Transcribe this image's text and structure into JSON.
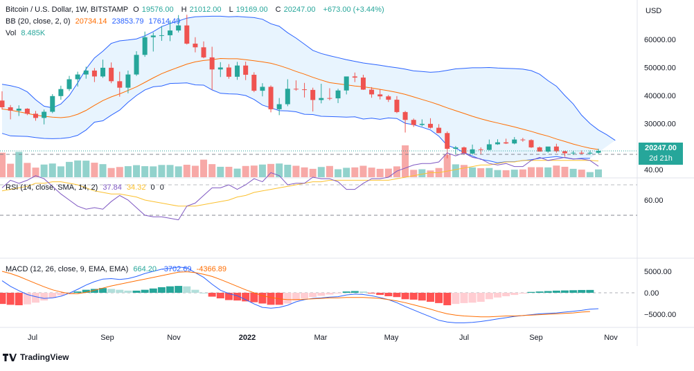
{
  "header": {
    "symbol": "Bitcoin / U.S. Dollar, 1W, BITSTAMP",
    "open_label": "O",
    "open": "19576.00",
    "high_label": "H",
    "high": "21012.00",
    "low_label": "L",
    "low": "19169.00",
    "close_label": "C",
    "close": "20247.00",
    "change": "+673.00 (+3.44%)",
    "bb_label": "BB (20, close, 2, 0)",
    "bb_basis": "20734.14",
    "bb_upper": "23853.79",
    "bb_lower": "17614.49",
    "vol_label": "Vol",
    "vol_value": "8.485K"
  },
  "rsi_header": {
    "label": "RSI (14, close, SMA, 14, 2)",
    "rsi": "37.84",
    "sma": "34.32",
    "v1": "0",
    "v2": "0"
  },
  "macd_header": {
    "label": "MACD (12, 26, close, 9, EMA, EMA)",
    "hist": "664.20",
    "macd": "-3702.69",
    "signal": "-4366.89"
  },
  "price_scale": {
    "currency": "USD",
    "ticks": [
      "60000.00",
      "50000.00",
      "40000.00",
      "30000.00"
    ],
    "last_price": "20247.00",
    "countdown": "2d 21h"
  },
  "rsi_scale": {
    "ticks": [
      "60.00",
      "40.00"
    ]
  },
  "macd_scale": {
    "ticks": [
      "5000.00",
      "0.00",
      "−5000.00"
    ]
  },
  "time_axis": [
    "Jul",
    "Sep",
    "Nov",
    "2022",
    "Mar",
    "May",
    "Jul",
    "Sep",
    "Nov"
  ],
  "brand": "TradingView",
  "colors": {
    "up": "#26a69a",
    "down": "#ef5350",
    "bb_line": "#2962ff",
    "basis": "#ff6d00",
    "rsi": "#7e57c2",
    "rsi_sma": "#fbc02d",
    "macd": "#2962ff",
    "signal": "#ff6d00"
  },
  "chart_data": {
    "type": "candlestick",
    "interval": "1W",
    "ylim": [
      18000,
      70000
    ],
    "candles": [
      {
        "o": 38200,
        "h": 41500,
        "l": 35000,
        "c": 35800
      },
      {
        "o": 35800,
        "h": 36600,
        "l": 31500,
        "c": 34600
      },
      {
        "o": 34600,
        "h": 36500,
        "l": 32700,
        "c": 35300
      },
      {
        "o": 35300,
        "h": 35500,
        "l": 33000,
        "c": 33500
      },
      {
        "o": 33500,
        "h": 34500,
        "l": 31000,
        "c": 32000
      },
      {
        "o": 32000,
        "h": 35000,
        "l": 29700,
        "c": 34200
      },
      {
        "o": 34200,
        "h": 40500,
        "l": 33700,
        "c": 39800
      },
      {
        "o": 39800,
        "h": 43500,
        "l": 38500,
        "c": 42300
      },
      {
        "o": 42300,
        "h": 47000,
        "l": 41600,
        "c": 45800
      },
      {
        "o": 45800,
        "h": 48500,
        "l": 43200,
        "c": 47500
      },
      {
        "o": 47500,
        "h": 50300,
        "l": 46000,
        "c": 48900
      },
      {
        "o": 48900,
        "h": 49800,
        "l": 44800,
        "c": 46800
      },
      {
        "o": 46800,
        "h": 52800,
        "l": 46300,
        "c": 49900
      },
      {
        "o": 49900,
        "h": 51800,
        "l": 44400,
        "c": 45100
      },
      {
        "o": 45100,
        "h": 48500,
        "l": 39600,
        "c": 42800
      },
      {
        "o": 42800,
        "h": 48900,
        "l": 40800,
        "c": 47500
      },
      {
        "o": 47500,
        "h": 55800,
        "l": 47000,
        "c": 54500
      },
      {
        "o": 54500,
        "h": 62800,
        "l": 53800,
        "c": 60800
      },
      {
        "o": 60800,
        "h": 62500,
        "l": 55700,
        "c": 61400
      },
      {
        "o": 61400,
        "h": 64800,
        "l": 59500,
        "c": 61500
      },
      {
        "o": 61500,
        "h": 66800,
        "l": 59400,
        "c": 63200
      },
      {
        "o": 63200,
        "h": 68700,
        "l": 62500,
        "c": 65000
      },
      {
        "o": 65000,
        "h": 68800,
        "l": 58200,
        "c": 58500
      },
      {
        "o": 58500,
        "h": 60800,
        "l": 55400,
        "c": 57200
      },
      {
        "o": 57200,
        "h": 59300,
        "l": 53300,
        "c": 53600
      },
      {
        "o": 53600,
        "h": 57400,
        "l": 42000,
        "c": 49300
      },
      {
        "o": 49300,
        "h": 51900,
        "l": 46600,
        "c": 50000
      },
      {
        "o": 50000,
        "h": 51200,
        "l": 46000,
        "c": 46700
      },
      {
        "o": 46700,
        "h": 52000,
        "l": 45600,
        "c": 50700
      },
      {
        "o": 50700,
        "h": 52100,
        "l": 45500,
        "c": 47400
      },
      {
        "o": 47400,
        "h": 48300,
        "l": 41200,
        "c": 41700
      },
      {
        "o": 41700,
        "h": 44400,
        "l": 39700,
        "c": 43100
      },
      {
        "o": 43100,
        "h": 43600,
        "l": 34000,
        "c": 35100
      },
      {
        "o": 35100,
        "h": 39100,
        "l": 33000,
        "c": 36900
      },
      {
        "o": 36900,
        "h": 45800,
        "l": 36200,
        "c": 42400
      },
      {
        "o": 42400,
        "h": 45400,
        "l": 41700,
        "c": 42200
      },
      {
        "o": 42200,
        "h": 44500,
        "l": 39300,
        "c": 42000
      },
      {
        "o": 42000,
        "h": 42800,
        "l": 34300,
        "c": 38400
      },
      {
        "o": 38400,
        "h": 44200,
        "l": 37200,
        "c": 39100
      },
      {
        "o": 39100,
        "h": 42600,
        "l": 38300,
        "c": 39000
      },
      {
        "o": 39000,
        "h": 42400,
        "l": 37300,
        "c": 41800
      },
      {
        "o": 41800,
        "h": 46600,
        "l": 40400,
        "c": 46800
      },
      {
        "o": 46800,
        "h": 48200,
        "l": 44800,
        "c": 46400
      },
      {
        "o": 46400,
        "h": 47400,
        "l": 42000,
        "c": 42100
      },
      {
        "o": 42100,
        "h": 43000,
        "l": 39200,
        "c": 40400
      },
      {
        "o": 40400,
        "h": 42200,
        "l": 38600,
        "c": 39700
      },
      {
        "o": 39700,
        "h": 40200,
        "l": 37700,
        "c": 38500
      },
      {
        "o": 38500,
        "h": 39800,
        "l": 33700,
        "c": 34100
      },
      {
        "o": 34100,
        "h": 34500,
        "l": 26800,
        "c": 31300
      },
      {
        "o": 31300,
        "h": 31800,
        "l": 28800,
        "c": 29500
      },
      {
        "o": 29500,
        "h": 31500,
        "l": 29000,
        "c": 29900
      },
      {
        "o": 29900,
        "h": 31900,
        "l": 28200,
        "c": 28500
      },
      {
        "o": 28500,
        "h": 29800,
        "l": 26600,
        "c": 26600
      },
      {
        "o": 26600,
        "h": 27200,
        "l": 17600,
        "c": 21000
      },
      {
        "o": 21000,
        "h": 22000,
        "l": 19200,
        "c": 21500
      },
      {
        "o": 21500,
        "h": 21800,
        "l": 18800,
        "c": 19300
      },
      {
        "o": 19300,
        "h": 22500,
        "l": 18900,
        "c": 20800
      },
      {
        "o": 20800,
        "h": 21500,
        "l": 19100,
        "c": 20600
      },
      {
        "o": 20600,
        "h": 24300,
        "l": 20400,
        "c": 22600
      },
      {
        "o": 22600,
        "h": 24400,
        "l": 22400,
        "c": 23300
      },
      {
        "o": 23300,
        "h": 24600,
        "l": 22700,
        "c": 22900
      },
      {
        "o": 22900,
        "h": 25200,
        "l": 22600,
        "c": 24300
      },
      {
        "o": 24300,
        "h": 24900,
        "l": 23500,
        "c": 24100
      },
      {
        "o": 24100,
        "h": 24400,
        "l": 21300,
        "c": 21500
      },
      {
        "o": 21500,
        "h": 21800,
        "l": 20000,
        "c": 20000
      },
      {
        "o": 20000,
        "h": 21500,
        "l": 19600,
        "c": 21800
      },
      {
        "o": 21800,
        "h": 22800,
        "l": 19600,
        "c": 20100
      },
      {
        "o": 20100,
        "h": 20300,
        "l": 18200,
        "c": 19400
      },
      {
        "o": 19400,
        "h": 20200,
        "l": 18800,
        "c": 19600
      },
      {
        "o": 19600,
        "h": 20400,
        "l": 18900,
        "c": 19300
      },
      {
        "o": 19300,
        "h": 20400,
        "l": 18800,
        "c": 19600
      },
      {
        "o": 19576,
        "h": 21012,
        "l": 19169,
        "c": 20247
      }
    ],
    "bb_upper": [
      44000,
      43500,
      42800,
      41300,
      38500,
      36200,
      35600,
      37000,
      40000,
      44500,
      49500,
      53400,
      55800,
      58600,
      59500,
      59800,
      60200,
      61300,
      62800,
      64600,
      65700,
      66600,
      67600,
      68100,
      68200,
      68300,
      68300,
      68100,
      68200,
      68000,
      67800,
      67200,
      65600,
      64700,
      62400,
      60500,
      58300,
      56100,
      55000,
      54200,
      53500,
      52800,
      52200,
      51600,
      51200,
      50800,
      50300,
      49900,
      49400,
      48800,
      48600,
      48300,
      48500,
      49000,
      49500,
      49700,
      49900,
      49900,
      50000,
      49800,
      49700,
      49600,
      49400,
      48900,
      47600,
      45300,
      43300,
      40000,
      37000,
      33000,
      30000,
      27700,
      26000,
      24000
    ],
    "bb_lower": [
      26500,
      25600,
      25500,
      25400,
      25000,
      24700,
      24600,
      24700,
      25000,
      25800,
      27700,
      30500,
      31000,
      33000,
      34800,
      37600,
      40000,
      42000,
      43100,
      43400,
      44300,
      44400,
      44500,
      43800,
      43700,
      42000,
      40800,
      40600,
      40500,
      40000,
      38600,
      36600,
      35600,
      34600,
      34500,
      34200,
      33300,
      33200,
      32600,
      32500,
      32400,
      32300,
      32400,
      31600,
      31900,
      31500,
      32000,
      31800,
      30100,
      29600,
      28700,
      27700,
      25500,
      22200,
      21200,
      19600,
      18400,
      17200,
      16700,
      16000,
      16400,
      16400,
      16800,
      17100,
      17600,
      17900,
      18200,
      17800,
      17300,
      17600,
      17600
    ],
    "bb_basis": [
      35200,
      34800,
      34200,
      33600,
      33000,
      32600,
      32300,
      32100,
      32400,
      33300,
      34700,
      36500,
      38200,
      39500,
      40600,
      41800,
      43100,
      44700,
      46300,
      47800,
      49000,
      50100,
      51200,
      52000,
      52500,
      52800,
      53200,
      53100,
      53100,
      52800,
      52400,
      52000,
      51500,
      50700,
      49700,
      48600,
      47600,
      46500,
      45500,
      44600,
      44200,
      43800,
      43400,
      43100,
      42700,
      42200,
      41700,
      41100,
      40400,
      39500,
      38600,
      37700,
      36700,
      35600,
      34600,
      33600,
      32600,
      31700,
      30900,
      30200,
      29500,
      28800,
      28000,
      27200,
      26300,
      25500,
      24500,
      23600,
      22700,
      21900,
      21200,
      20734
    ],
    "volume": [
      12,
      6.6,
      12.4,
      7,
      4.7,
      6.2,
      6.7,
      5.3,
      7.5,
      8.2,
      8.1,
      7.1,
      6.4,
      4.5,
      5,
      5.4,
      5.9,
      5.4,
      5.3,
      6,
      6,
      5.3,
      6.1,
      5.6,
      8.6,
      6.4,
      5.1,
      5.1,
      4.2,
      5.5,
      5.7,
      6.2,
      6.5,
      6.7,
      6.1,
      5.6,
      4.8,
      4.1,
      5,
      5.5,
      3.9,
      4.6,
      4.8,
      5.6,
      4.7,
      4.1,
      4.2,
      5.3,
      15.6,
      3.6,
      3.9,
      3.3,
      4.5,
      11,
      6.3,
      6,
      4.8,
      4.4,
      4.5,
      3.5,
      3.4,
      3.7,
      3.8,
      4.9,
      4.9,
      4.8,
      5.7,
      5.1,
      4.1,
      3.7,
      2.5,
      3.8
    ],
    "rsi": [
      52,
      47,
      49,
      47,
      44,
      46,
      51,
      56,
      60,
      64,
      66,
      65,
      66,
      61,
      57,
      60,
      65,
      70,
      71,
      71,
      72,
      73,
      64,
      62,
      57,
      52,
      52,
      50,
      53,
      50,
      46,
      48,
      42,
      44,
      50,
      49,
      49,
      45,
      46,
      46,
      48,
      53,
      53,
      49,
      46,
      46,
      45,
      41,
      39,
      37,
      36,
      36,
      35,
      29,
      31,
      29,
      32,
      33,
      36,
      37,
      36,
      38,
      38,
      34,
      32,
      34,
      33,
      32,
      33,
      33,
      34,
      37.8
    ],
    "rsi_sma": [
      54,
      53,
      52,
      51,
      49,
      49,
      48,
      48,
      49,
      50,
      52,
      54,
      55,
      56,
      56,
      57,
      58,
      60,
      61,
      62,
      63,
      64,
      64,
      64,
      63,
      62,
      61,
      60,
      58,
      57,
      55,
      54,
      53,
      52,
      51,
      50,
      49,
      48,
      48,
      47,
      47,
      47,
      47,
      47,
      47,
      47,
      47,
      46,
      45,
      44,
      43,
      42,
      42,
      41,
      40,
      39,
      38,
      37,
      37,
      36,
      35,
      35,
      34,
      34,
      34,
      34,
      34,
      34,
      34,
      34,
      34,
      34.3
    ],
    "macd_hist": [
      -2600,
      -2800,
      -2900,
      -2700,
      -2300,
      -1800,
      -1200,
      -600,
      -100,
      300,
      700,
      900,
      1100,
      900,
      700,
      500,
      500,
      700,
      1000,
      1300,
      1500,
      1600,
      1500,
      700,
      0,
      -900,
      -1300,
      -1700,
      -1800,
      -2000,
      -2200,
      -2500,
      -2800,
      -2800,
      -2500,
      -1800,
      -1300,
      -1000,
      -700,
      -400,
      -100,
      300,
      400,
      300,
      -100,
      -500,
      -800,
      -1000,
      -1500,
      -1600,
      -1800,
      -2100,
      -2400,
      -2900,
      -2600,
      -2400,
      -2300,
      -2100,
      -1500,
      -1100,
      -800,
      -500,
      -200,
      200,
      300,
      400,
      500,
      550,
      600,
      650,
      664
    ],
    "macd": [
      2800,
      1500,
      500,
      -400,
      -900,
      -1300,
      -1200,
      -800,
      -100,
      800,
      1800,
      2600,
      3200,
      3300,
      3100,
      3300,
      3800,
      4500,
      5000,
      5500,
      5700,
      6000,
      5800,
      4700,
      3600,
      2000,
      600,
      -200,
      -700,
      -1600,
      -2600,
      -3400,
      -3600,
      -3400,
      -2900,
      -2100,
      -1600,
      -1300,
      -1200,
      -1000,
      -900,
      -500,
      -300,
      -400,
      -700,
      -1100,
      -1600,
      -2300,
      -3200,
      -4000,
      -4800,
      -5600,
      -6400,
      -6800,
      -7000,
      -7000,
      -6900,
      -6700,
      -6400,
      -6100,
      -5800,
      -5500,
      -5300,
      -5100,
      -4900,
      -4800,
      -4700,
      -4500,
      -4300,
      -4100,
      -3800,
      -3702
    ],
    "macd_signal": [
      5000,
      4500,
      3800,
      3000,
      2200,
      1400,
      700,
      200,
      -200,
      -200,
      100,
      600,
      1100,
      1600,
      2000,
      2400,
      2800,
      3200,
      3600,
      4000,
      4400,
      4800,
      4900,
      4700,
      4300,
      3800,
      3100,
      2300,
      1500,
      700,
      0,
      -700,
      -1100,
      -1400,
      -1600,
      -1600,
      -1500,
      -1400,
      -1300,
      -1200,
      -1200,
      -1100,
      -1100,
      -1100,
      -1200,
      -1300,
      -1600,
      -1900,
      -2300,
      -2800,
      -3300,
      -3800,
      -4400,
      -4900,
      -5200,
      -5400,
      -5500,
      -5600,
      -5600,
      -5500,
      -5400,
      -5400,
      -5300,
      -5200,
      -5100,
      -5000,
      -4900,
      -4800,
      -4700,
      -4500,
      -4367
    ]
  }
}
